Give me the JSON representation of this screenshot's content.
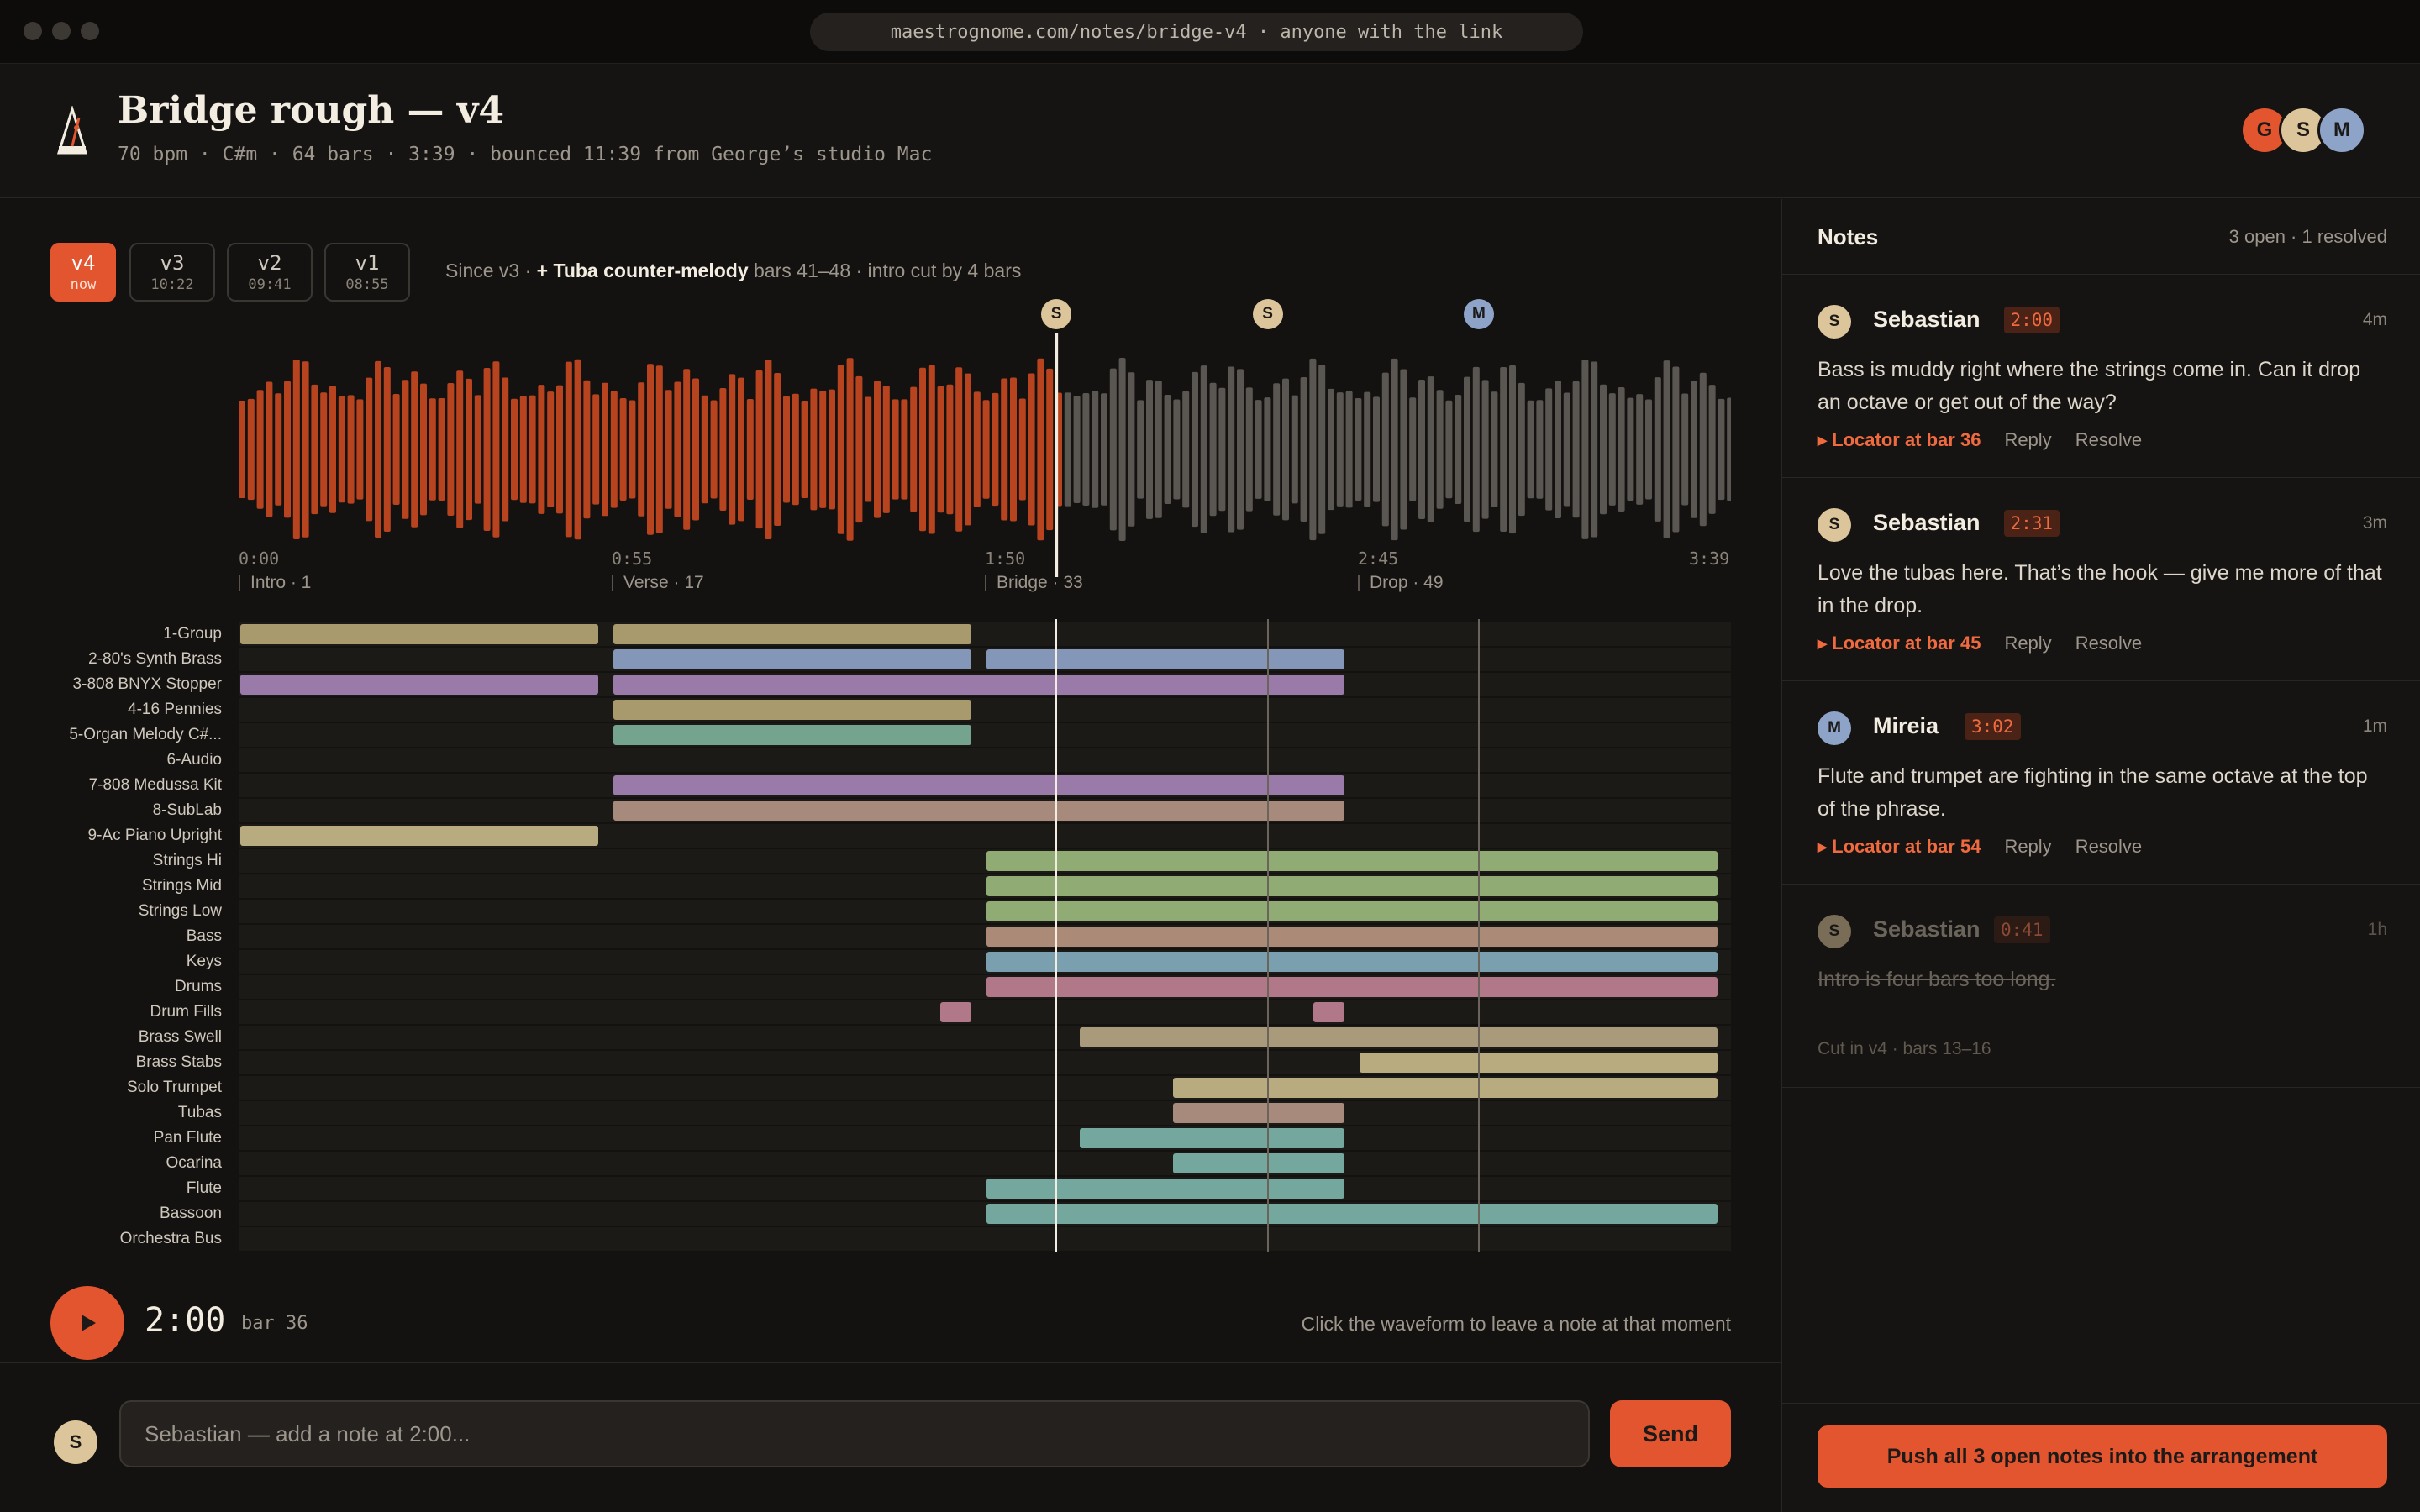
{
  "browser": {
    "url": "maestrognome.com/notes/bridge-v4 · anyone with the link"
  },
  "header": {
    "title": "Bridge rough — v4",
    "subtitle": "70 bpm · C#m · 64 bars · 3:39 · bounced 11:39 from George’s studio Mac",
    "collaborators": [
      {
        "initial": "G",
        "color": "#e2552e"
      },
      {
        "initial": "S",
        "color": "#dcc59b"
      },
      {
        "initial": "M",
        "color": "#8ea3c8"
      }
    ]
  },
  "versions": [
    {
      "name": "v4",
      "time": "now",
      "active": true
    },
    {
      "name": "v3",
      "time": "10:22",
      "active": false
    },
    {
      "name": "v2",
      "time": "09:41",
      "active": false
    },
    {
      "name": "v1",
      "time": "08:55",
      "active": false
    }
  ],
  "changes": {
    "prefix": "Since v3 ·",
    "highlight": "+ Tuba counter-melody",
    "suffix": "bars 41–48 · intro cut by 4 bars"
  },
  "timeline": {
    "duration_sec": 219,
    "playhead_sec": 120,
    "ticks": [
      "0:00",
      "0:55",
      "1:50",
      "2:45",
      "3:39"
    ],
    "sections": [
      {
        "label": "Intro · 1",
        "bar": 1
      },
      {
        "label": "Verse · 17",
        "bar": 17
      },
      {
        "label": "Bridge · 33",
        "bar": 33
      },
      {
        "label": "Drop · 49",
        "bar": 49
      }
    ],
    "markers": [
      {
        "initial": "S",
        "sec": 120,
        "color": "#dcc59b"
      },
      {
        "initial": "S",
        "sec": 151,
        "color": "#dcc59b"
      },
      {
        "initial": "M",
        "sec": 182,
        "color": "#8ea3c8"
      }
    ],
    "total_bars": 64
  },
  "tracks": [
    {
      "name": "1-Group",
      "color": "#a89a6c",
      "clips": [
        [
          1,
          16
        ],
        [
          17,
          32
        ]
      ]
    },
    {
      "name": "2-80's Synth Brass",
      "color": "#8497b8",
      "clips": [
        [
          17,
          32
        ],
        [
          33,
          48
        ]
      ]
    },
    {
      "name": "3-808 BNYX Stopper",
      "color": "#9a7aa8",
      "clips": [
        [
          1,
          16
        ],
        [
          17,
          48
        ]
      ]
    },
    {
      "name": "4-16 Pennies",
      "color": "#a89a6c",
      "clips": [
        [
          17,
          32
        ]
      ]
    },
    {
      "name": "5-Organ Melody C#...",
      "color": "#74a48e",
      "clips": [
        [
          17,
          32
        ]
      ]
    },
    {
      "name": "6-Audio",
      "color": "#a89a6c",
      "clips": []
    },
    {
      "name": "7-808 Medussa Kit",
      "color": "#9a7aa8",
      "clips": [
        [
          17,
          48
        ]
      ]
    },
    {
      "name": "8-SubLab",
      "color": "#a88a7c",
      "clips": [
        [
          17,
          48
        ]
      ]
    },
    {
      "name": "9-Ac Piano Upright",
      "color": "#b8ab80",
      "clips": [
        [
          1,
          16
        ]
      ]
    },
    {
      "name": "Strings Hi",
      "color": "#90ab74",
      "clips": [
        [
          33,
          64
        ]
      ]
    },
    {
      "name": "Strings Mid",
      "color": "#90ab74",
      "clips": [
        [
          33,
          64
        ]
      ]
    },
    {
      "name": "Strings Low",
      "color": "#90ab74",
      "clips": [
        [
          33,
          64
        ]
      ]
    },
    {
      "name": "Bass",
      "color": "#ab8a78",
      "clips": [
        [
          33,
          64
        ]
      ]
    },
    {
      "name": "Keys",
      "color": "#7a9fae",
      "clips": [
        [
          33,
          64
        ]
      ]
    },
    {
      "name": "Drums",
      "color": "#b07888",
      "clips": [
        [
          33,
          64
        ]
      ]
    },
    {
      "name": "Drum Fills",
      "color": "#b07888",
      "clips": [
        [
          31,
          32
        ],
        [
          47,
          48
        ]
      ]
    },
    {
      "name": "Brass Swell",
      "color": "#a89a7a",
      "clips": [
        [
          37,
          64
        ]
      ]
    },
    {
      "name": "Brass Stabs",
      "color": "#b8ab80",
      "clips": [
        [
          49,
          64
        ]
      ]
    },
    {
      "name": "Solo Trumpet",
      "color": "#b8ab80",
      "clips": [
        [
          41,
          64
        ]
      ]
    },
    {
      "name": "Tubas",
      "color": "#a88a7c",
      "clips": [
        [
          41,
          48
        ]
      ]
    },
    {
      "name": "Pan Flute",
      "color": "#74a89e",
      "clips": [
        [
          37,
          48
        ]
      ]
    },
    {
      "name": "Ocarina",
      "color": "#74a89e",
      "clips": [
        [
          41,
          48
        ]
      ]
    },
    {
      "name": "Flute",
      "color": "#74a89e",
      "clips": [
        [
          33,
          48
        ]
      ]
    },
    {
      "name": "Bassoon",
      "color": "#74a89e",
      "clips": [
        [
          33,
          64
        ]
      ]
    },
    {
      "name": "Orchestra Bus",
      "color": "#a89a6c",
      "clips": []
    }
  ],
  "transport": {
    "time": "2:00",
    "bar": "bar 36",
    "hint": "Click the waveform to leave a note at that moment"
  },
  "composer": {
    "avatar": "S",
    "placeholder": "Sebastian — add a note at 2:00...",
    "send_label": "Send"
  },
  "notes_panel": {
    "title": "Notes",
    "count": "3 open · 1 resolved",
    "notes": [
      {
        "initial": "S",
        "avatar_color": "#dcc59b",
        "author": "Sebastian",
        "timestamp": "2:00",
        "ago": "4m",
        "text": "Bass is muddy right where the strings come in. Can it drop an octave or get out of the way?",
        "locator": "▸ Locator at bar 36",
        "reply": "Reply",
        "resolve": "Resolve"
      },
      {
        "initial": "S",
        "avatar_color": "#dcc59b",
        "author": "Sebastian",
        "timestamp": "2:31",
        "ago": "3m",
        "text": "Love the tubas here. That’s the hook — give me more of that in the drop.",
        "locator": "▸ Locator at bar 45",
        "reply": "Reply",
        "resolve": "Resolve"
      },
      {
        "initial": "M",
        "avatar_color": "#8ea3c8",
        "author": "Mireia",
        "timestamp": "3:02",
        "ago": "1m",
        "text": "Flute and trumpet are fighting in the same octave at the top of the phrase.",
        "locator": "▸ Locator at bar 54",
        "reply": "Reply",
        "resolve": "Resolve"
      }
    ],
    "resolved_note": {
      "initial": "S",
      "avatar_color": "#dcc59b",
      "author": "Sebastian",
      "timestamp": "0:41",
      "ago": "1h",
      "text": "Intro is four bars too long.",
      "resolution": "Cut in v4 · bars 13–16"
    },
    "push_label": "Push all 3 open notes into the arrangement"
  },
  "colors": {
    "accent": "#e2552e",
    "played_wave": "#b8431f",
    "unplayed_wave": "#5a5753"
  }
}
